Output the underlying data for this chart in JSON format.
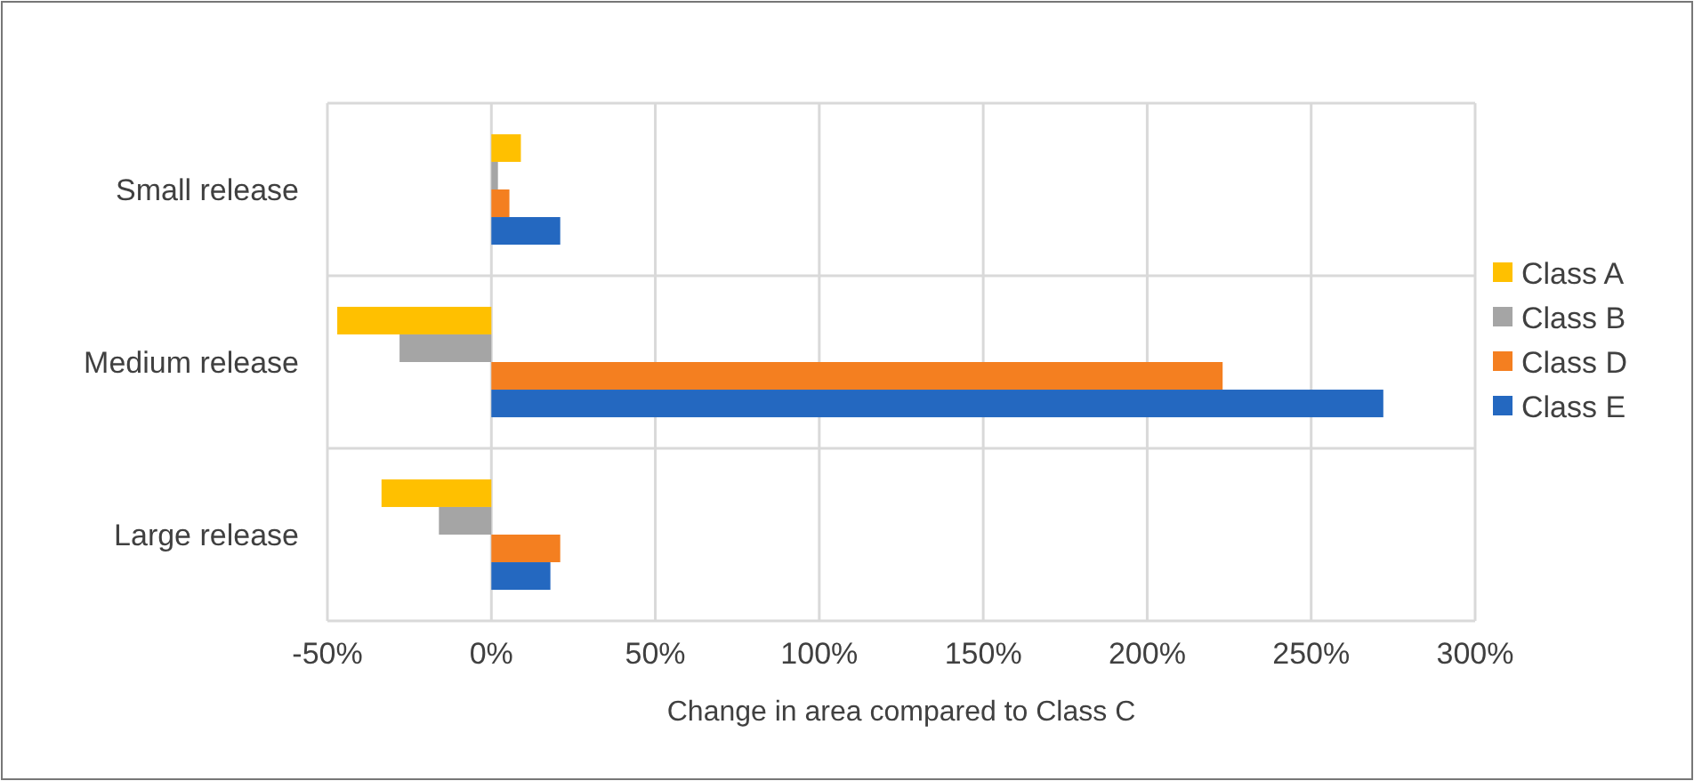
{
  "chart_data": {
    "type": "bar",
    "orientation": "horizontal",
    "xlabel": "Change in area compared to Class C",
    "categories": [
      "Small release",
      "Medium release",
      "Large release"
    ],
    "series": [
      {
        "name": "Class A",
        "color": "#ffc000",
        "values": [
          9,
          -47,
          -33.5
        ]
      },
      {
        "name": "Class B",
        "color": "#a5a5a5",
        "values": [
          2,
          -28,
          -16
        ]
      },
      {
        "name": "Class D",
        "color": "#f47f20",
        "values": [
          5.5,
          223,
          21
        ]
      },
      {
        "name": "Class E",
        "color": "#2468c0",
        "values": [
          21,
          272,
          18
        ]
      }
    ],
    "xlim": [
      -50,
      300
    ],
    "xticks": [
      {
        "value": -50,
        "label": "-50%"
      },
      {
        "value": 0,
        "label": "0%"
      },
      {
        "value": 50,
        "label": "50%"
      },
      {
        "value": 100,
        "label": "100%"
      },
      {
        "value": 150,
        "label": "150%"
      },
      {
        "value": 200,
        "label": "200%"
      },
      {
        "value": 250,
        "label": "250%"
      },
      {
        "value": 300,
        "label": "300%"
      }
    ],
    "grid": true,
    "legend": "right"
  }
}
